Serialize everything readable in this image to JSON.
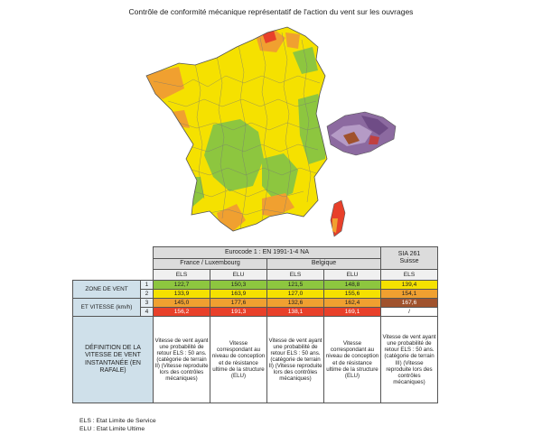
{
  "title": "Contrôle de conformité mécanique représentatif de l'action du vent sur les ouvrages",
  "colors": {
    "zone1": "#8dc63f",
    "zone2": "#f5e100",
    "zone3": "#f0a030",
    "zone4": "#e8402a",
    "suisse_zone3": "#a0522d"
  },
  "table": {
    "eurocode_header": "Eurocode 1 : EN 1991-1-4 NA",
    "sia_header": "SIA 261",
    "sia_sub": "Suisse",
    "france_header": "France / Luxembourg",
    "belgique_header": "Belgique",
    "cols": [
      "ELS",
      "ELU",
      "ELS",
      "ELU",
      "ELS"
    ],
    "zone_label_1": "ZONE DE VENT",
    "zone_label_2": "ET VITESSE (km/h)",
    "rows": [
      {
        "zone": "1",
        "values": [
          "122,7",
          "150,3",
          "121,5",
          "148,8",
          "139,4"
        ]
      },
      {
        "zone": "2",
        "values": [
          "133,9",
          "163,9",
          "127,0",
          "155,6",
          "154,1"
        ]
      },
      {
        "zone": "3",
        "values": [
          "145,0",
          "177,6",
          "132,6",
          "162,4",
          "167,6"
        ]
      },
      {
        "zone": "4",
        "values": [
          "156,2",
          "191,3",
          "138,1",
          "169,1",
          "/"
        ]
      }
    ],
    "definition_label": "DÉFINITION DE LA VITESSE DE VENT INSTANTANÉE (EN RAFALE)",
    "definitions": [
      "Vitesse de vent ayant une probabilité de retour ELS : 50 ans. (catégorie de terrain II) (Vitesse reproduite lors des contrôles mécaniques)",
      "Vitesse correspondant au niveau de conception et de résistance ultime de la structure (ELU)",
      "Vitesse de vent ayant une probabilité de retour ELS : 50 ans. (catégorie de terrain II) (Vitesse reproduite lors des contrôles mécaniques)",
      "Vitesse correspondant au niveau de conception et de résistance ultime de la structure (ELU)",
      "Vitesse de vent ayant une probabilité de retour ELS : 50 ans. (catégorie de terrain III) (Vitesse reproduite lors des contrôles mécaniques)"
    ]
  },
  "legend": {
    "els": "ELS : Etat Limite de Service",
    "elu": "ELU : Etat Limite Ultime"
  }
}
